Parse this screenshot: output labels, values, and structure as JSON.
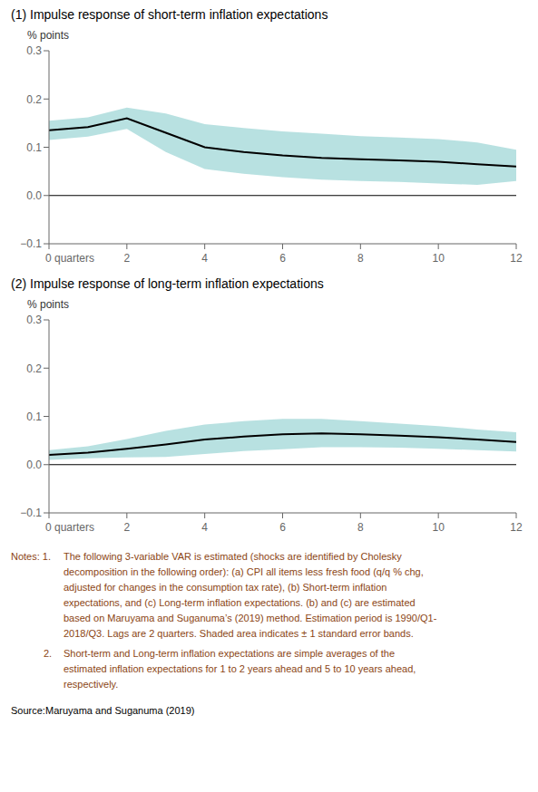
{
  "chart_data": [
    {
      "type": "line",
      "title": "(1) Impulse response of short-term inflation expectations",
      "ylabel": "% points",
      "x": [
        0,
        1,
        2,
        3,
        4,
        5,
        6,
        7,
        8,
        9,
        10,
        11,
        12
      ],
      "series": [
        {
          "type": "band",
          "color": "#7EC8C8",
          "lower": [
            0.115,
            0.122,
            0.138,
            0.09,
            0.055,
            0.045,
            0.038,
            0.033,
            0.03,
            0.028,
            0.025,
            0.022,
            0.03
          ],
          "upper": [
            0.155,
            0.162,
            0.182,
            0.17,
            0.148,
            0.14,
            0.133,
            0.128,
            0.123,
            0.12,
            0.117,
            0.11,
            0.095
          ]
        },
        {
          "type": "line",
          "color": "#000000",
          "values": [
            0.135,
            0.142,
            0.16,
            0.13,
            0.1,
            0.09,
            0.083,
            0.078,
            0.075,
            0.073,
            0.07,
            0.065,
            0.06
          ]
        }
      ],
      "hlines": [
        0
      ],
      "xlim": [
        0,
        12
      ],
      "xticks": [
        {
          "value": 0,
          "label": "0 quarters"
        },
        2,
        4,
        6,
        8,
        10,
        12
      ],
      "ylim": [
        -0.1,
        0.3
      ],
      "yticks": [
        {
          "value": -0.1,
          "label": "−0.1"
        },
        {
          "value": 0,
          "label": "0.0"
        },
        0.1,
        0.2,
        0.3
      ],
      "grid": false
    },
    {
      "type": "line",
      "title": "(2) Impulse response of long-term inflation expectations",
      "ylabel": "% points",
      "x": [
        0,
        1,
        2,
        3,
        4,
        5,
        6,
        7,
        8,
        9,
        10,
        11,
        12
      ],
      "series": [
        {
          "type": "band",
          "color": "#7EC8C8",
          "lower": [
            0.01,
            0.013,
            0.015,
            0.016,
            0.022,
            0.028,
            0.032,
            0.036,
            0.036,
            0.035,
            0.033,
            0.03,
            0.027
          ],
          "upper": [
            0.03,
            0.038,
            0.053,
            0.07,
            0.083,
            0.09,
            0.095,
            0.095,
            0.09,
            0.085,
            0.08,
            0.073,
            0.067
          ]
        },
        {
          "type": "line",
          "color": "#000000",
          "values": [
            0.02,
            0.025,
            0.033,
            0.042,
            0.052,
            0.058,
            0.063,
            0.065,
            0.063,
            0.06,
            0.057,
            0.052,
            0.047
          ]
        }
      ],
      "hlines": [
        0
      ],
      "xlim": [
        0,
        12
      ],
      "xticks": [
        {
          "value": 0,
          "label": "0 quarters"
        },
        2,
        4,
        6,
        8,
        10,
        12
      ],
      "ylim": [
        -0.1,
        0.3
      ],
      "yticks": [
        {
          "value": -0.1,
          "label": "−0.1"
        },
        {
          "value": 0,
          "label": "0.0"
        },
        0.1,
        0.2,
        0.3
      ],
      "grid": false,
      "annotations": [
        {
          "label": "Notes: 1.",
          "color": "#8B4513",
          "lines": [
            "The following 3-variable VAR is estimated (shocks are identified by Cholesky",
            "decomposition in the following order): (a) CPI all items less fresh food (q/q % chg,",
            "adjusted for changes in the consumption tax rate), (b) Short-term inflation",
            "expectations, and (c) Long-term inflation expectations. (b) and (c) are estimated",
            "based on Maruyama and Suganuma’s (2019) method. Estimation period is 1990/Q1-",
            "2018/Q3.  Lags are 2 quarters. Shaded area indicates ± 1 standard error bands."
          ]
        },
        {
          "label": "2.",
          "color": "#8B4513",
          "lines": [
            "Short-term and Long-term inflation expectations are simple averages of the",
            "estimated inflation expectations for 1 to 2 years ahead and 5 to 10 years ahead,",
            "respectively."
          ]
        },
        {
          "label": "Source:",
          "color": "#000000",
          "lines": [
            "Maruyama and Suganuma (2019)"
          ]
        }
      ]
    }
  ]
}
